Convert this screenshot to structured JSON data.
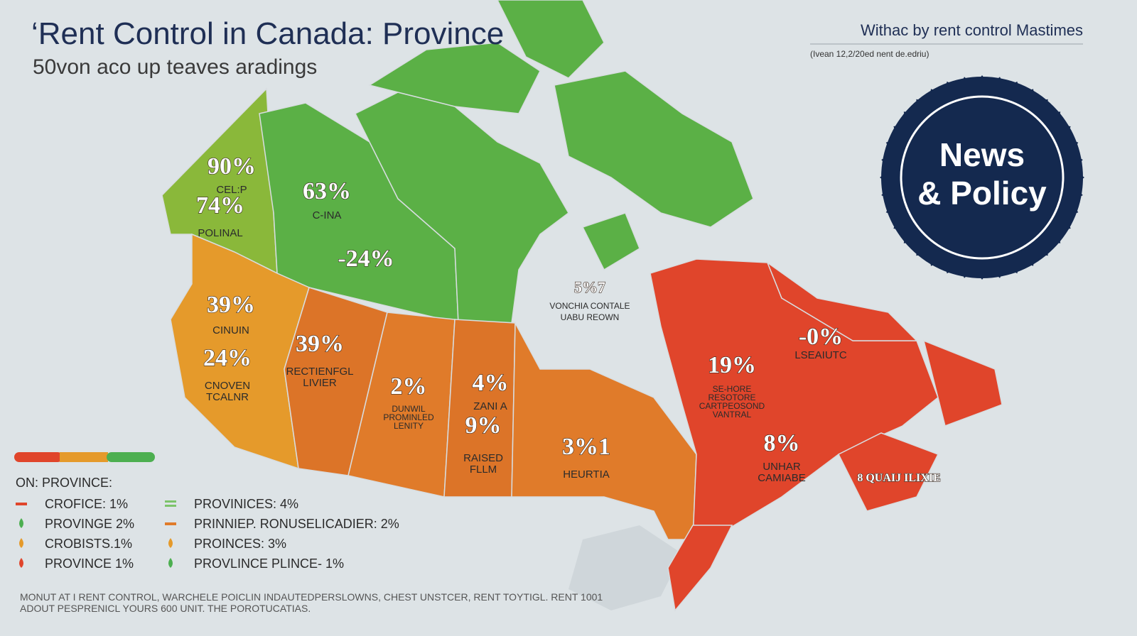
{
  "header": {
    "title": "‘Rent Control in Canada: Province",
    "subtitle": "50von aco up teaves aradings",
    "source_title": "Withac by rent control Mastimes",
    "source_note": "(Ivean 12,2/20ed nent de.edriu)"
  },
  "badge": {
    "lines": [
      "News",
      "& Policy"
    ]
  },
  "regions": [
    {
      "value": "90%",
      "lines": [
        "CEL:P"
      ]
    },
    {
      "value": "74%",
      "lines": [
        "POLINAL"
      ]
    },
    {
      "value": "63%",
      "lines": [
        "C-INA"
      ]
    },
    {
      "value": "-24%",
      "lines": []
    },
    {
      "value": "5%7",
      "lines": [
        "VONCHIA CONTALE",
        "UABU REOWN"
      ]
    },
    {
      "value": "39%",
      "lines": [
        "CINUIN"
      ]
    },
    {
      "value": "24%",
      "lines": [
        "CNOVEN",
        "TCALNR"
      ]
    },
    {
      "value": "39%",
      "lines": [
        "RECTIENFGL",
        "LIVIER"
      ]
    },
    {
      "value": "2%",
      "lines": [
        "DUNWIL",
        "PROMINLED",
        "LENITY"
      ]
    },
    {
      "value": "4%",
      "lines": [
        "ZANI A"
      ]
    },
    {
      "value": "9%",
      "lines": [
        "RAISED",
        "FLLM"
      ]
    },
    {
      "value": "3%1",
      "lines": [
        "HEURTIA"
      ]
    },
    {
      "value": "19%",
      "lines": [
        "SE-HORE",
        "RESOTORE",
        "CARTPEOSOND",
        "VANTRAL"
      ]
    },
    {
      "value": "-0%",
      "lines": [
        "LSEAIUTC"
      ]
    },
    {
      "value": "8%",
      "lines": [
        "UNHAR",
        "CAMIABE"
      ]
    },
    {
      "value": "8 QUAIJ ILIXIE",
      "lines": []
    }
  ],
  "legend": {
    "heading": "ON: PROVINCE:",
    "items": [
      {
        "label": "CROFICE: 1%",
        "color": "#e0452b",
        "marker": "dash"
      },
      {
        "label": "PROVINGE 2%",
        "color": "#4caf50",
        "marker": "drop"
      },
      {
        "label": "CROBISTS.1%",
        "color": "#e59a2b",
        "marker": "drop"
      },
      {
        "label": "PROVINCE 1%",
        "color": "#e0452b",
        "marker": "drop"
      },
      {
        "label": "PROVINICES: 4%",
        "color": "#7cc36a",
        "marker": "lines"
      },
      {
        "label": "PRINNIEP. RONUSELICADIER: 2%",
        "color": "#e07b2a",
        "marker": "dash"
      },
      {
        "label": "PROINCES: 3%",
        "color": "#e59a2b",
        "marker": "drop"
      },
      {
        "label": "PROVLINCE PLINCE- 1%",
        "color": "#4caf50",
        "marker": "drop"
      }
    ]
  },
  "footer": {
    "lines": [
      "MONUT AT I RENT CONTROL,  WARCHELE POICLIN INDAUTEDPERSLOWNS, CHEST UNSTCER,  RENT TOYTIGL. RENT 1001",
      "ADOUT PESPRENICL YOURS 600 UNIT. THE POROTUCATIAS."
    ]
  }
}
